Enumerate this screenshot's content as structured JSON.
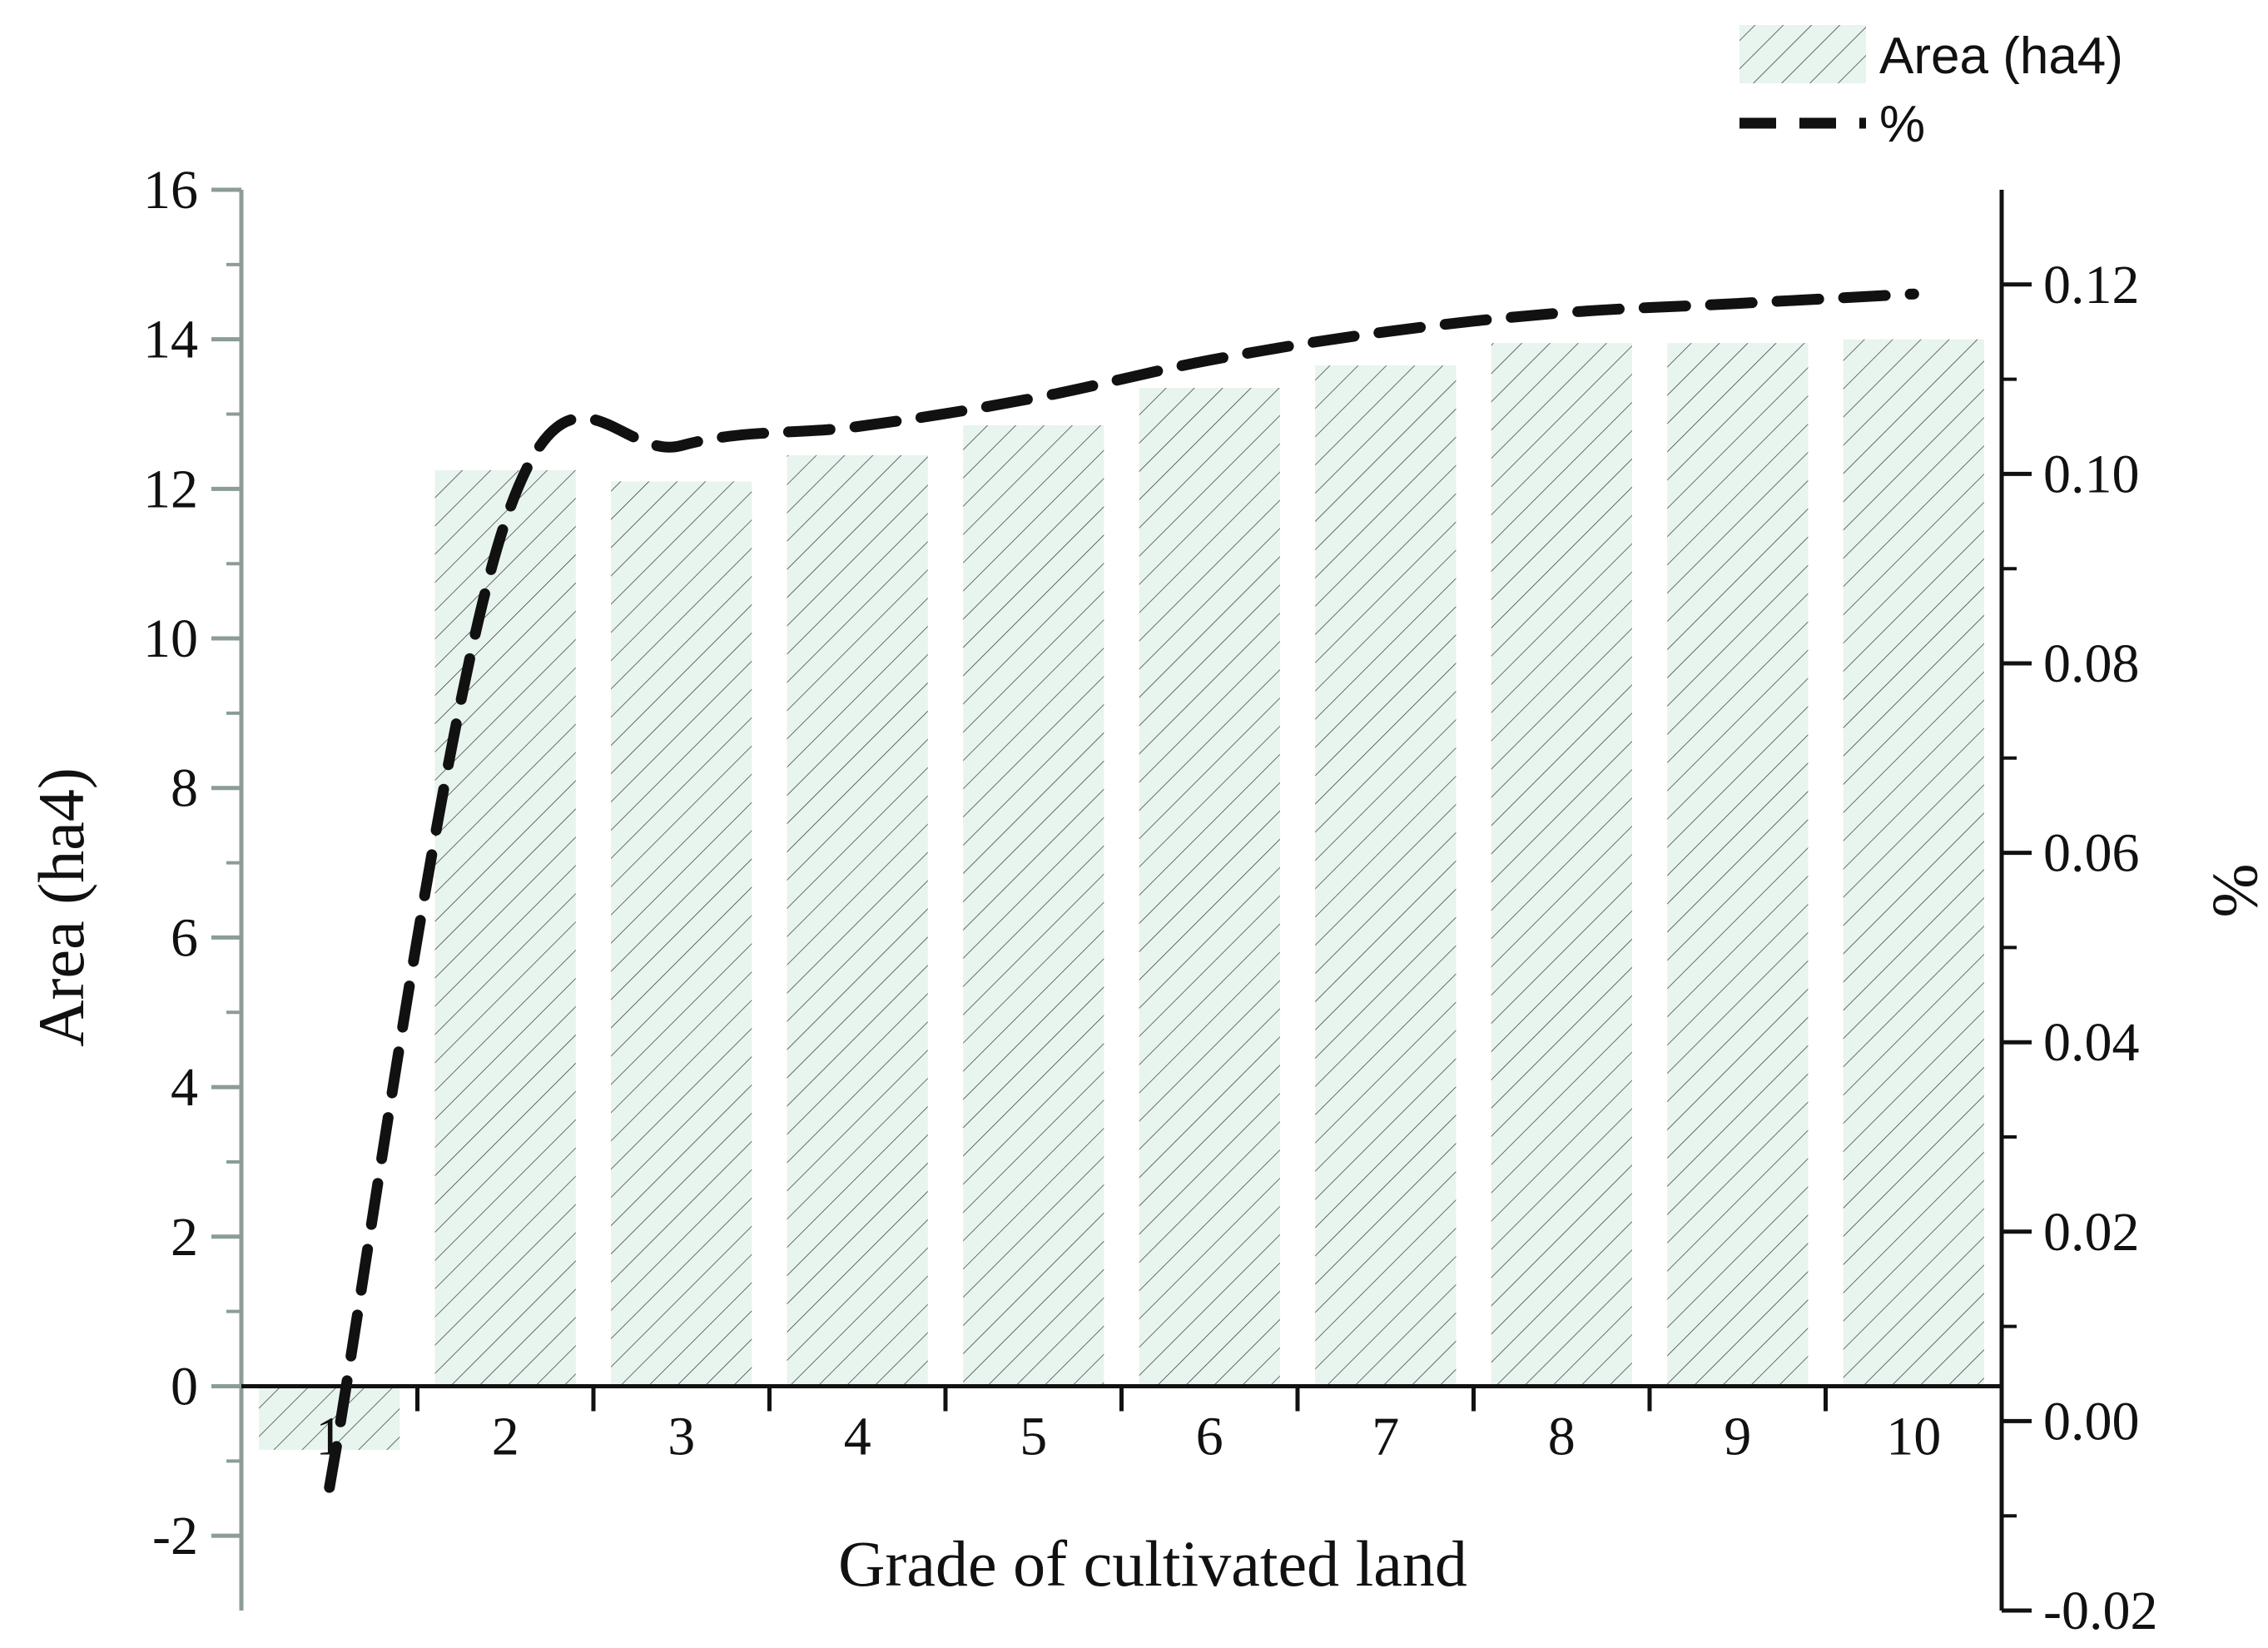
{
  "chart_data": {
    "type": "bar",
    "categories": [
      "1",
      "2",
      "3",
      "4",
      "5",
      "6",
      "7",
      "8",
      "9",
      "10"
    ],
    "xlabel": "Grade of cultivated land",
    "series": [
      {
        "name": "Area (ha4)",
        "type": "bar",
        "axis": "left",
        "values": [
          -0.85,
          12.25,
          12.1,
          12.45,
          12.85,
          13.35,
          13.65,
          13.95,
          13.95,
          14.0
        ]
      },
      {
        "name": "%",
        "type": "line",
        "axis": "right",
        "style": "dashed",
        "values": [
          -0.007,
          0.095,
          0.103,
          0.105,
          0.108,
          0.112,
          0.115,
          0.117,
          0.118,
          0.119
        ]
      }
    ],
    "y_left": {
      "label": "Area (ha4)",
      "lim": [
        -3,
        16
      ],
      "ticks": [
        -2,
        0,
        2,
        4,
        6,
        8,
        10,
        12,
        14,
        16
      ],
      "tick_labels": [
        "-2",
        "0",
        "2",
        "4",
        "6",
        "8",
        "10",
        "12",
        "14",
        "16"
      ]
    },
    "y_right": {
      "label": "%",
      "lim": [
        -0.02,
        0.13
      ],
      "ticks": [
        -0.02,
        0.0,
        0.02,
        0.04,
        0.06,
        0.08,
        0.1,
        0.12
      ],
      "tick_labels": [
        "-0.02",
        "0.00",
        "0.02",
        "0.04",
        "0.06",
        "0.08",
        "0.10",
        "0.12"
      ]
    },
    "legend": {
      "placement": "top-right",
      "entries": [
        "Area (ha4)",
        "%"
      ]
    },
    "grid": false,
    "colors": {
      "bar_fill": "#e8f4ee",
      "hatch": "#333333",
      "line": "#111111",
      "left_axis": "#8c9c96",
      "right_axis": "#111111"
    }
  }
}
